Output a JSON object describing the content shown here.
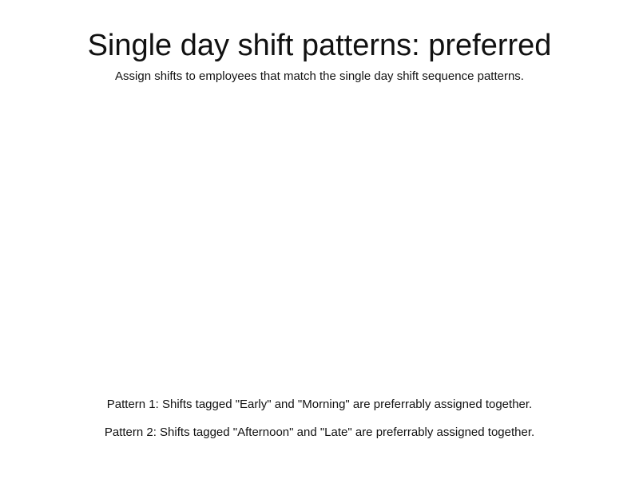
{
  "header": {
    "title": "Single day shift patterns: preferred",
    "subtitle": "Assign shifts to employees that match the single day shift sequence patterns."
  },
  "patterns": [
    {
      "text": "Pattern 1: Shifts tagged \"Early\" and \"Morning\" are preferrably assigned together."
    },
    {
      "text": "Pattern 2: Shifts tagged \"Afternoon\" and \"Late\" are preferrably assigned together."
    }
  ]
}
